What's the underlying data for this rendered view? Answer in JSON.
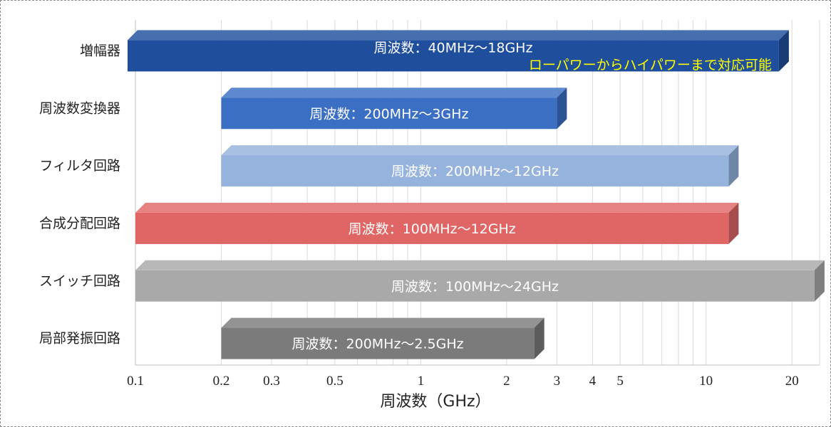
{
  "chart_data": {
    "type": "bar",
    "orientation": "horizontal",
    "style": "3d-floating-range",
    "xlabel": "周波数（GHz）",
    "xscale": "log",
    "xlim": [
      0.1,
      25
    ],
    "xticks": [
      {
        "value": 0.1,
        "label": "0.1"
      },
      {
        "value": 0.2,
        "label": "0.2"
      },
      {
        "value": 0.3,
        "label": "0.3"
      },
      {
        "value": 0.5,
        "label": "0.5"
      },
      {
        "value": 1,
        "label": "1"
      },
      {
        "value": 2,
        "label": "2"
      },
      {
        "value": 3,
        "label": "3"
      },
      {
        "value": 4,
        "label": "4"
      },
      {
        "value": 5,
        "label": "5"
      },
      {
        "value": 10,
        "label": "10"
      },
      {
        "value": 20,
        "label": "20"
      }
    ],
    "grid": true,
    "categories": [
      "増幅器",
      "周波数変換器",
      "フィルタ回路",
      "合成分配回路",
      "スイッチ回路",
      "局部発振回路"
    ],
    "series": [
      {
        "category": "増幅器",
        "start": 0.04,
        "end": 18,
        "label": "周波数：40MHz～18GHz",
        "note": "ローパワーからハイパワーまで対応可能",
        "color": "#1f4e9c"
      },
      {
        "category": "周波数変換器",
        "start": 0.2,
        "end": 3,
        "label": "周波数：200MHz～3GHz",
        "color": "#3a6fc4"
      },
      {
        "category": "フィルタ回路",
        "start": 0.2,
        "end": 12,
        "label": "周波数：200MHz～12GHz",
        "color": "#95b3dd"
      },
      {
        "category": "合成分配回路",
        "start": 0.1,
        "end": 12,
        "label": "周波数：100MHz～12GHz",
        "color": "#e06666"
      },
      {
        "category": "スイッチ回路",
        "start": 0.1,
        "end": 24,
        "label": "周波数：100MHz～24GHz",
        "color": "#a9a9a9"
      },
      {
        "category": "局部発振回路",
        "start": 0.2,
        "end": 2.5,
        "label": "周波数：200MHz～2.5GHz",
        "color": "#7b7b7b"
      }
    ]
  }
}
